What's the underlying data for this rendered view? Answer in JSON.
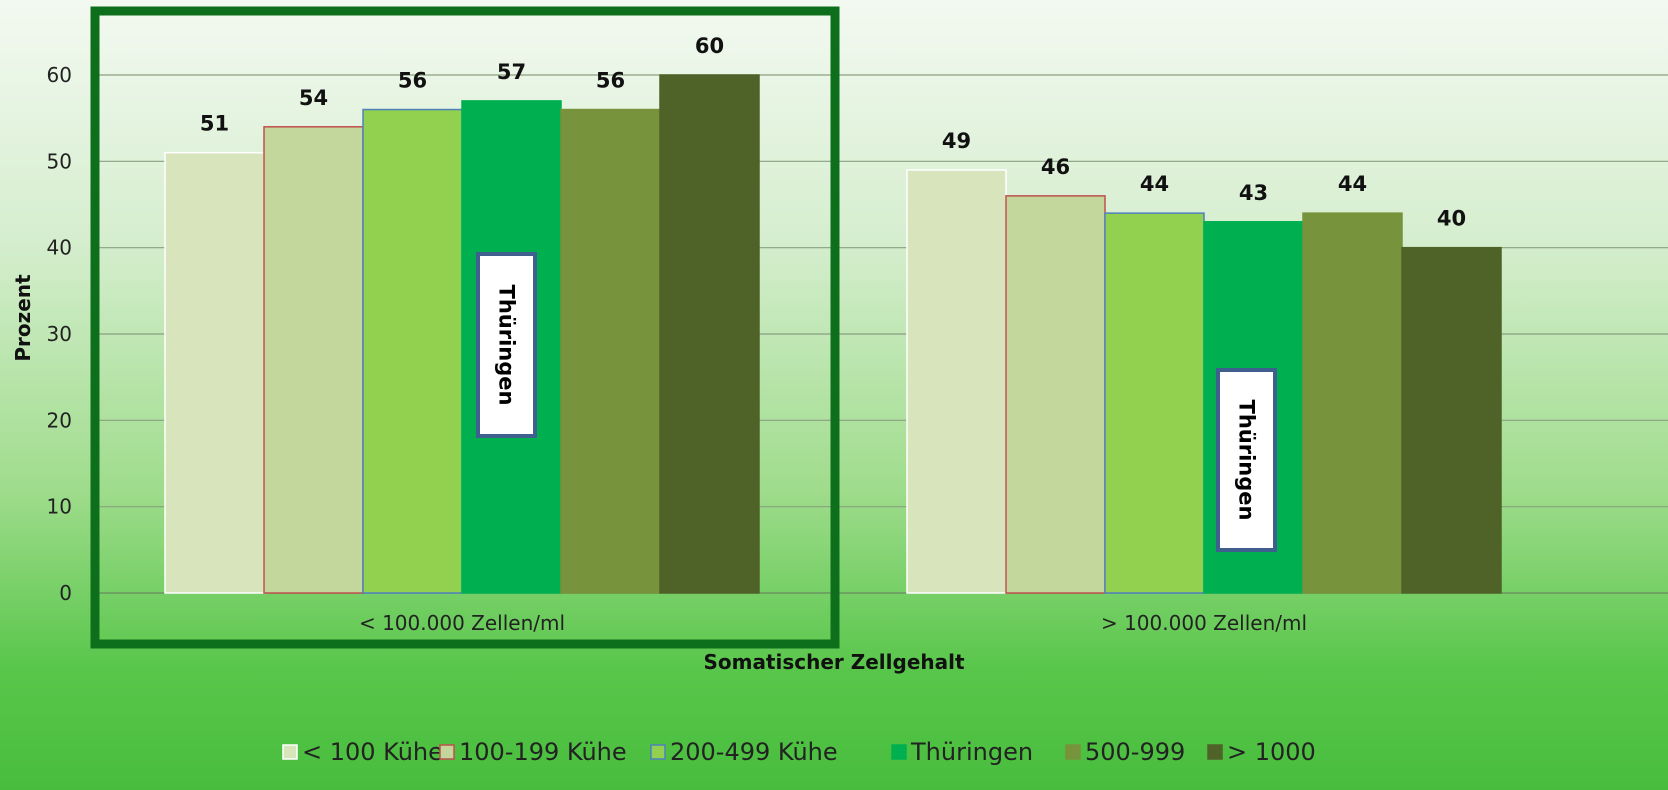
{
  "chart_data": {
    "type": "bar",
    "xlabel": "Somatischer Zellgehalt",
    "ylabel": "Prozent",
    "ylim": [
      0,
      60
    ],
    "yticks": [
      0,
      10,
      20,
      30,
      40,
      50,
      60
    ],
    "grid": true,
    "legend_position": "bottom",
    "categories": [
      "< 100.000 Zellen/ml",
      "> 100.000 Zellen/ml"
    ],
    "series": [
      {
        "name": "< 100 Kühe",
        "values": [
          51,
          49
        ],
        "color": "#d8e4bc",
        "border": "#ffffff"
      },
      {
        "name": "100-199 Kühe",
        "values": [
          54,
          46
        ],
        "color": "#c3d69b",
        "border": "#c0504d"
      },
      {
        "name": "200-499 Kühe",
        "values": [
          56,
          44
        ],
        "color": "#92d050",
        "border": "#4f81bd"
      },
      {
        "name": "Thüringen",
        "values": [
          57,
          43
        ],
        "color": "#00b050",
        "border": "#00b050"
      },
      {
        "name": "500-999",
        "values": [
          56,
          44
        ],
        "color": "#77933c",
        "border": "#77933c"
      },
      {
        "name": "> 1000",
        "values": [
          60,
          40
        ],
        "color": "#4f6228",
        "border": "#4f6228"
      }
    ],
    "annotations": [
      "Thüringen",
      "Thüringen"
    ],
    "highlight_color": "#0d6e1c",
    "callout_border": "#3f5f8f"
  }
}
